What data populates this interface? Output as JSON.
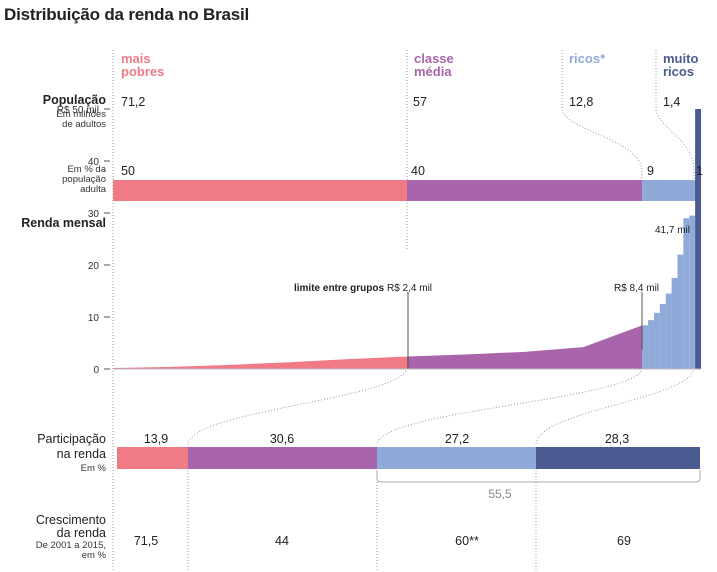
{
  "title": "Distribuição da renda no Brasil",
  "colors": {
    "pobres": "#f07a86",
    "media": "#a865ab",
    "ricos": "#8fa9d8",
    "muito_ricos": "#4b5b91"
  },
  "groups": [
    {
      "line1": "mais",
      "line2": "pobres",
      "color": "#f07a86"
    },
    {
      "line1": "classe",
      "line2": "média",
      "color": "#a865ab"
    },
    {
      "line1": "ricos*",
      "line2": "",
      "color": "#8fa9d8"
    },
    {
      "line1": "muito",
      "line2": "ricos",
      "color": "#4b5b91"
    }
  ],
  "populacao": {
    "label": "População",
    "sub1": "Em milhões",
    "sub2": "de adultos",
    "values": [
      "71,2",
      "57",
      "12,8",
      "1,4"
    ]
  },
  "pct_pop": {
    "sub1": "Em % da",
    "sub2": "população",
    "sub3": "adulta",
    "values": [
      "50",
      "40",
      "9",
      "1"
    ]
  },
  "renda": {
    "label": "Renda mensal",
    "ticks": [
      "R$ 50 mil",
      "40",
      "30",
      "20",
      "10",
      "0"
    ],
    "limite_label": "limite entre grupos",
    "limite1": "R$ 2,4 mil",
    "limite2": "R$ 8,4 mil",
    "max_label": "41,7 mil"
  },
  "participacao": {
    "label1": "Participação",
    "label2": "na renda",
    "sub": "Em %",
    "values": [
      "13,9",
      "30,6",
      "27,2",
      "28,3"
    ],
    "sum": "55,5"
  },
  "crescimento": {
    "label1": "Crescimento",
    "label2": "da renda",
    "sub1": "De 2001 a 2015,",
    "sub2": "em %",
    "values": [
      "71,5",
      "44",
      "60**",
      "69"
    ]
  },
  "chart_data": [
    {
      "type": "bar",
      "title": "Em % da população adulta",
      "categories": [
        "mais pobres",
        "classe média",
        "ricos*",
        "muito ricos"
      ],
      "values": [
        50,
        40,
        9,
        1
      ]
    },
    {
      "type": "area",
      "title": "Renda mensal",
      "ylabel": "R$ mil",
      "ylim": [
        0,
        50
      ],
      "x_pct_population": [
        0,
        10,
        20,
        30,
        40,
        50,
        60,
        70,
        80,
        90,
        91,
        92,
        93,
        94,
        95,
        96,
        97,
        98,
        99,
        99.5,
        100
      ],
      "y": [
        0.2,
        0.4,
        0.8,
        1.3,
        1.9,
        2.4,
        2.8,
        3.3,
        4.2,
        8.4,
        9.0,
        10.0,
        11.5,
        13,
        15,
        18,
        22,
        29,
        35,
        41.7,
        50
      ],
      "annotations": [
        "R$ 2,4 mil",
        "R$ 8,4 mil",
        "41,7 mil"
      ]
    },
    {
      "type": "bar",
      "title": "Participação na renda (Em %)",
      "categories": [
        "mais pobres",
        "classe média",
        "ricos*",
        "muito ricos"
      ],
      "values": [
        13.9,
        30.6,
        27.2,
        28.3
      ]
    },
    {
      "type": "table",
      "title": "Crescimento da renda de 2001 a 2015, em %",
      "categories": [
        "mais pobres",
        "classe média",
        "ricos*",
        "muito ricos"
      ],
      "values": [
        "71,5",
        "44",
        "60**",
        "69"
      ]
    }
  ]
}
